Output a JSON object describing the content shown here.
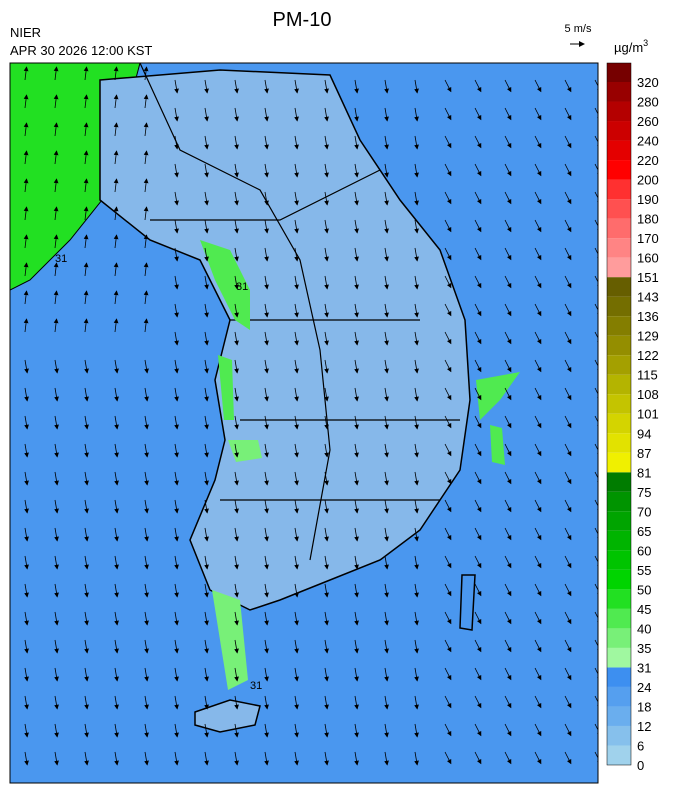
{
  "header": {
    "title": "PM-10",
    "agency": "NIER",
    "timestamp": "APR 30 2026 12:00 KST",
    "wind_scale": "5 m/s",
    "unit": "µg/m",
    "unit_power": "3"
  },
  "legend": {
    "ticks": [
      0,
      6,
      12,
      18,
      24,
      31,
      35,
      40,
      45,
      50,
      55,
      60,
      65,
      70,
      75,
      81,
      87,
      94,
      101,
      108,
      115,
      122,
      129,
      136,
      143,
      151,
      160,
      170,
      180,
      190,
      200,
      220,
      240,
      260,
      280,
      320
    ],
    "colors": [
      "#a0d2ec",
      "#86c0ec",
      "#6aaeee",
      "#559fef",
      "#3d8ff0",
      "#a0f8a0",
      "#78f078",
      "#50ea50",
      "#22e022",
      "#00d400",
      "#00c400",
      "#00b400",
      "#00a400",
      "#009400",
      "#007c00",
      "#f0f000",
      "#e2e200",
      "#d4d400",
      "#c4c400",
      "#b4b400",
      "#a4a000",
      "#948e00",
      "#847e00",
      "#746e00",
      "#665e00",
      "#ff9c9c",
      "#ff8484",
      "#ff6c6c",
      "#ff5050",
      "#ff3030",
      "#ff0000",
      "#e40000",
      "#cc0000",
      "#b40000",
      "#980000",
      "#760000"
    ]
  },
  "map": {
    "contour_labels": [
      "31",
      "31",
      "31"
    ]
  }
}
